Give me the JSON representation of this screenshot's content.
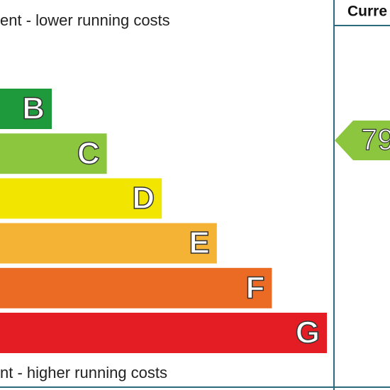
{
  "header": {
    "top_note": "ent - lower running costs",
    "bottom_note": "nt - higher running costs",
    "column_title": "Curre"
  },
  "bands": [
    {
      "letter": "B",
      "color": "#1e9a3c"
    },
    {
      "letter": "C",
      "color": "#8cc63f"
    },
    {
      "letter": "D",
      "color": "#f2e600"
    },
    {
      "letter": "E",
      "color": "#f5b335"
    },
    {
      "letter": "F",
      "color": "#ec6b24"
    },
    {
      "letter": "G",
      "color": "#e31d23"
    }
  ],
  "current": {
    "value": "79",
    "color": "#8cc63f"
  }
}
